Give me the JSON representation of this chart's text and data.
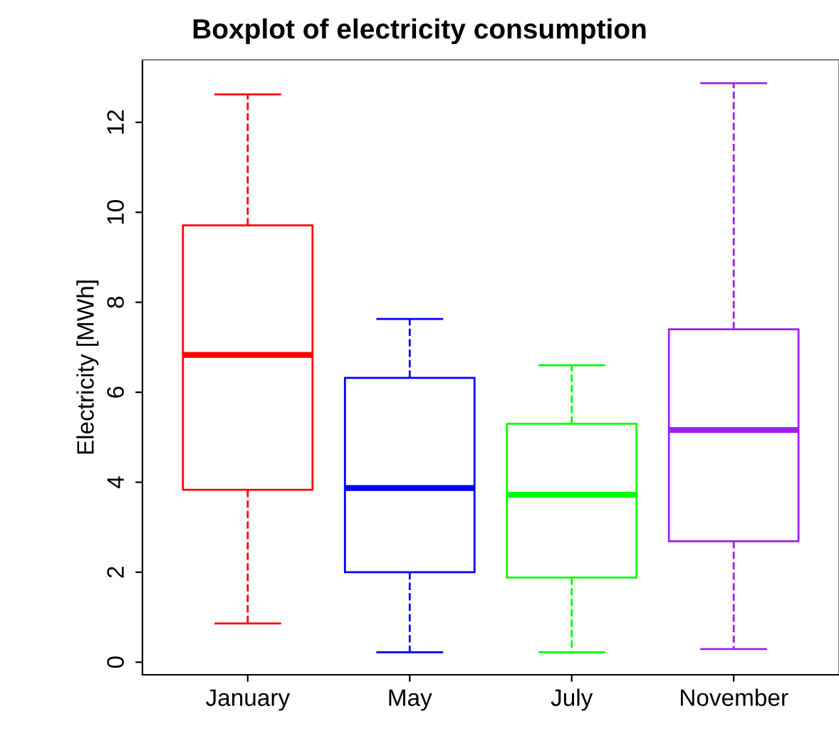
{
  "chart_data": {
    "type": "box",
    "title": "Boxplot of electricity consumption",
    "ylabel": "Electricity [MWh]",
    "categories": [
      "January",
      "May",
      "July",
      "November"
    ],
    "colors": [
      "#ff0000",
      "#0000ff",
      "#00ff00",
      "#a020f0"
    ],
    "boxes": [
      {
        "low": 0.86,
        "q1": 3.83,
        "median": 6.83,
        "q3": 9.71,
        "high": 12.62
      },
      {
        "low": 0.22,
        "q1": 2.0,
        "median": 3.87,
        "q3": 6.32,
        "high": 7.63
      },
      {
        "low": 0.22,
        "q1": 1.88,
        "median": 3.72,
        "q3": 5.3,
        "high": 6.6
      },
      {
        "low": 0.29,
        "q1": 2.69,
        "median": 5.16,
        "q3": 7.4,
        "high": 12.87
      }
    ],
    "ylim": [
      -0.28,
      13.39
    ],
    "yticks": [
      0,
      2,
      4,
      6,
      8,
      10,
      12
    ],
    "grid": false
  }
}
